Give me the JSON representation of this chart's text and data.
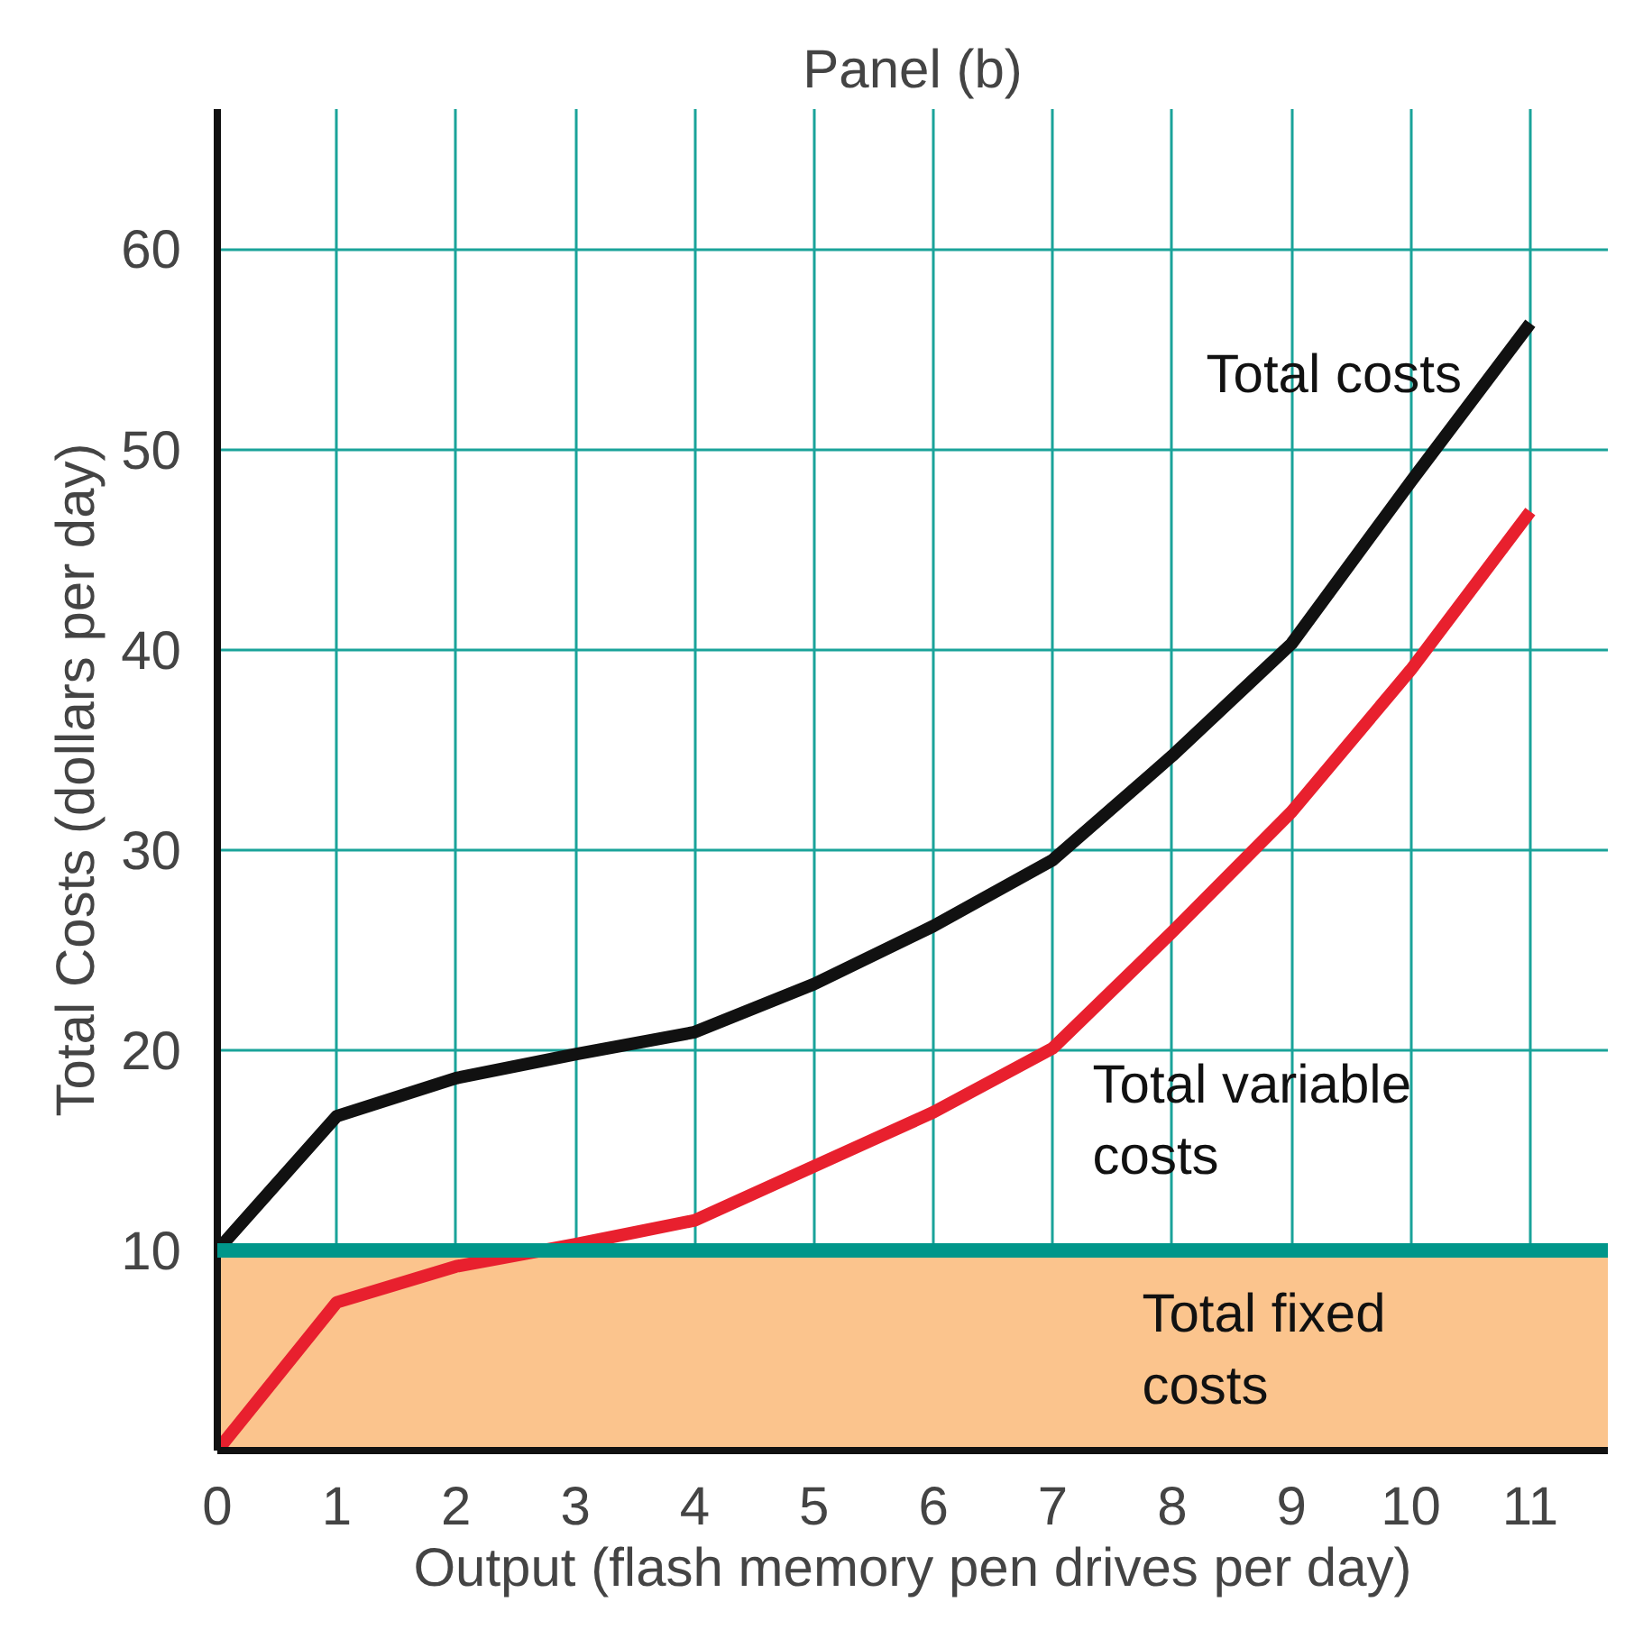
{
  "chart_data": {
    "type": "line",
    "title": "Panel (b)",
    "xlabel": "Output (flash memory pen drives per day)",
    "ylabel": "Total Costs (dollars per day)",
    "x": [
      0,
      1,
      2,
      3,
      4,
      5,
      6,
      7,
      8,
      9,
      10,
      11
    ],
    "series": [
      {
        "name": "Total costs",
        "color": "#111111",
        "values": [
          10,
          16.7,
          18.6,
          19.8,
          20.9,
          23.3,
          26.2,
          29.5,
          34.7,
          40.3,
          48.4,
          56.3
        ]
      },
      {
        "name": "Total variable costs",
        "color": "#e8202e",
        "values": [
          0,
          7.4,
          9.2,
          10.3,
          11.5,
          14.2,
          16.9,
          20.1,
          25.9,
          31.9,
          39.0,
          46.9
        ]
      }
    ],
    "xlim": [
      0,
      11.65
    ],
    "ylim": [
      0,
      67
    ],
    "xticks": [
      0,
      1,
      2,
      3,
      4,
      5,
      6,
      7,
      8,
      9,
      10,
      11
    ],
    "yticks": [
      10,
      20,
      30,
      40,
      50,
      60
    ],
    "ref_lines": [
      {
        "axis": "y",
        "value": 10,
        "color": "#00968a"
      }
    ],
    "bands": [
      {
        "axis": "y",
        "from": 0,
        "to": 10,
        "label": "Total fixed costs",
        "color": "#fbc48d"
      }
    ],
    "grid": true,
    "marker": "none",
    "line_style": "solid"
  }
}
